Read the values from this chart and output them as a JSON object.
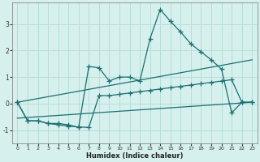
{
  "xlabel": "Humidex (Indice chaleur)",
  "bg_color": "#d6f0ee",
  "line_color": "#1a7070",
  "grid_color": "#b8ddd8",
  "xlim": [
    -0.5,
    23.5
  ],
  "ylim": [
    -1.5,
    3.8
  ],
  "yticks": [
    -1,
    0,
    1,
    2,
    3
  ],
  "xticks": [
    0,
    1,
    2,
    3,
    4,
    5,
    6,
    7,
    8,
    9,
    10,
    11,
    12,
    13,
    14,
    15,
    16,
    17,
    18,
    19,
    20,
    21,
    22,
    23
  ],
  "series": [
    {
      "x": [
        0,
        23
      ],
      "y": [
        -0.55,
        0.05
      ],
      "markers": false
    },
    {
      "x": [
        0,
        23
      ],
      "y": [
        0.05,
        1.65
      ],
      "markers": false
    },
    {
      "x": [
        0,
        1,
        2,
        3,
        4,
        5,
        6,
        7,
        8,
        9,
        10,
        11,
        12,
        13,
        14,
        15,
        16,
        17,
        18,
        19,
        20,
        21,
        22,
        23
      ],
      "y": [
        0.05,
        -0.65,
        -0.65,
        -0.75,
        -0.75,
        -0.8,
        -0.9,
        1.4,
        1.35,
        0.85,
        1.0,
        1.0,
        0.85,
        2.45,
        3.55,
        3.1,
        2.7,
        2.25,
        1.95,
        1.65,
        1.3,
        -0.35,
        0.05,
        0.05
      ],
      "markers": true
    },
    {
      "x": [
        0,
        1,
        2,
        3,
        4,
        5,
        6,
        7,
        8,
        9,
        10,
        11,
        12,
        13,
        14,
        15,
        16,
        17,
        18,
        19,
        20,
        21,
        22,
        23
      ],
      "y": [
        0.05,
        -0.65,
        -0.65,
        -0.75,
        -0.8,
        -0.85,
        -0.88,
        -0.9,
        0.3,
        0.3,
        0.35,
        0.4,
        0.45,
        0.5,
        0.55,
        0.6,
        0.65,
        0.7,
        0.75,
        0.8,
        0.85,
        0.9,
        0.05,
        0.05
      ],
      "markers": true
    }
  ]
}
